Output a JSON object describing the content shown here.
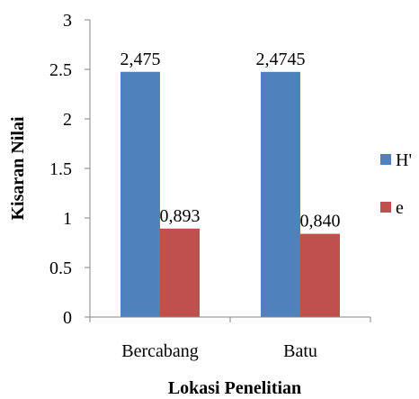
{
  "chart_data": {
    "type": "bar",
    "categories": [
      "Bercabang",
      "Batu"
    ],
    "series": [
      {
        "name": "H'",
        "values": [
          2.475,
          2.4745
        ],
        "labels": [
          "2,475",
          "2,4745"
        ],
        "color": "#4F81BD"
      },
      {
        "name": "e",
        "values": [
          0.893,
          0.84
        ],
        "labels": [
          "0,893",
          "0,840"
        ],
        "color": "#C0504D"
      }
    ],
    "title": "",
    "xlabel": "Lokasi Penelitian",
    "ylabel": "Kisaran Nilai",
    "ylim": [
      0,
      3
    ],
    "yticks": [
      0,
      0.5,
      1,
      1.5,
      2,
      2.5,
      3
    ],
    "ytick_labels": [
      "0",
      "0.5",
      "1",
      "1.5",
      "2",
      "2.5",
      "3"
    ],
    "grid": false,
    "legend_position": "right"
  }
}
